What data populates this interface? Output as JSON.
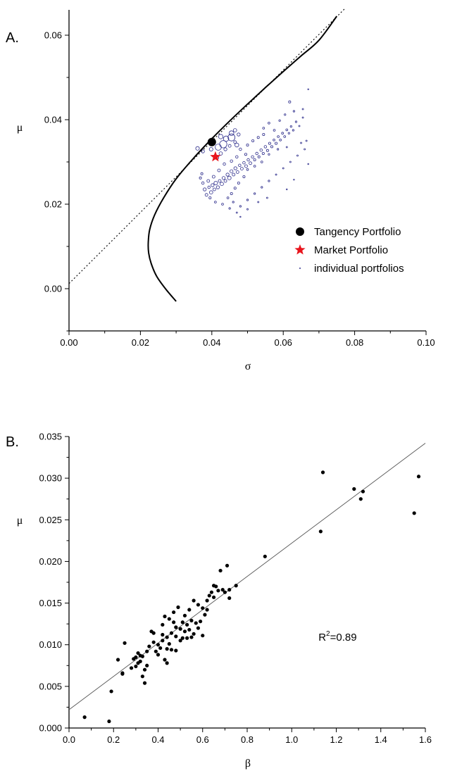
{
  "chart_data": [
    {
      "type": "scatter",
      "panel_label": "A.",
      "xlabel": "σ",
      "ylabel": "μ",
      "xlim": [
        0.0,
        0.1
      ],
      "ylim": [
        -0.01,
        0.066
      ],
      "x_ticks": [
        0.0,
        0.02,
        0.04,
        0.06,
        0.08,
        0.1
      ],
      "x_tick_labels": [
        "0.00",
        "0.02",
        "0.04",
        "0.06",
        "0.08",
        "0.10"
      ],
      "y_ticks": [
        0.0,
        0.02,
        0.04,
        0.06
      ],
      "y_tick_labels": [
        "0.00",
        "0.02",
        "0.04",
        "0.06"
      ],
      "grid": false,
      "legend_position": "bottom-right",
      "legend": [
        {
          "label": "Tangency Portfolio",
          "marker": "filled-circle",
          "color": "#000000"
        },
        {
          "label": "Market Portfolio",
          "marker": "star",
          "color": "#e8141c"
        },
        {
          "label": "individual portfolios",
          "marker": "small-open-circle",
          "color": "#2e2e8c"
        }
      ],
      "frontier_curve": {
        "name": "efficient frontier",
        "min_variance_point": [
          0.0222,
          0.0085
        ],
        "x": [
          0.03,
          0.027,
          0.0245,
          0.023,
          0.0223,
          0.0222,
          0.0226,
          0.024,
          0.0265,
          0.03,
          0.035,
          0.04,
          0.045,
          0.05,
          0.055,
          0.06,
          0.065,
          0.07,
          0.075
        ],
        "y": [
          -0.003,
          0.0,
          0.003,
          0.006,
          0.0085,
          0.011,
          0.014,
          0.0175,
          0.0215,
          0.026,
          0.031,
          0.0355,
          0.0397,
          0.0437,
          0.0476,
          0.0514,
          0.0551,
          0.0588,
          0.0645
        ]
      },
      "capital_market_line": {
        "name": "tangent line",
        "style": "dotted",
        "x": [
          0.0,
          0.0775
        ],
        "y": [
          0.0012,
          0.0665
        ]
      },
      "tangency_portfolio": {
        "x": 0.04,
        "y": 0.0347
      },
      "market_portfolio": {
        "x": 0.041,
        "y": 0.0312
      },
      "individual_portfolios": {
        "color": "#2e2e8c",
        "points": [
          [
            0.038,
            0.0235,
            2.2
          ],
          [
            0.0385,
            0.0222,
            2.0
          ],
          [
            0.0392,
            0.024,
            1.8
          ],
          [
            0.0398,
            0.0228,
            2.4
          ],
          [
            0.0402,
            0.0245,
            2.2
          ],
          [
            0.0407,
            0.0235,
            2.0
          ],
          [
            0.0411,
            0.025,
            2.6
          ],
          [
            0.0417,
            0.024,
            2.2
          ],
          [
            0.0422,
            0.0255,
            2.0
          ],
          [
            0.0428,
            0.0248,
            2.4
          ],
          [
            0.0433,
            0.0262,
            2.2
          ],
          [
            0.0438,
            0.0255,
            2.0
          ],
          [
            0.0444,
            0.027,
            2.2
          ],
          [
            0.0449,
            0.0262,
            2.6
          ],
          [
            0.0455,
            0.0278,
            2.2
          ],
          [
            0.0461,
            0.027,
            2.0
          ],
          [
            0.0466,
            0.0285,
            2.2
          ],
          [
            0.0472,
            0.0276,
            2.0
          ],
          [
            0.0478,
            0.0292,
            1.8
          ],
          [
            0.0484,
            0.0284,
            2.0
          ],
          [
            0.049,
            0.0298,
            1.8
          ],
          [
            0.0496,
            0.029,
            2.0
          ],
          [
            0.0502,
            0.0305,
            1.8
          ],
          [
            0.0508,
            0.0297,
            2.0
          ],
          [
            0.0514,
            0.0312,
            1.8
          ],
          [
            0.052,
            0.0305,
            1.6
          ],
          [
            0.0526,
            0.032,
            1.8
          ],
          [
            0.0532,
            0.0312,
            1.6
          ],
          [
            0.0538,
            0.0328,
            1.8
          ],
          [
            0.0544,
            0.032,
            1.6
          ],
          [
            0.055,
            0.0336,
            1.8
          ],
          [
            0.0556,
            0.0327,
            1.6
          ],
          [
            0.0562,
            0.0344,
            1.6
          ],
          [
            0.0568,
            0.0336,
            1.6
          ],
          [
            0.0574,
            0.0352,
            1.4
          ],
          [
            0.058,
            0.0344,
            1.6
          ],
          [
            0.0586,
            0.036,
            1.4
          ],
          [
            0.0592,
            0.0352,
            1.4
          ],
          [
            0.0598,
            0.0368,
            1.4
          ],
          [
            0.0604,
            0.036,
            1.4
          ],
          [
            0.061,
            0.0376,
            1.4
          ],
          [
            0.0616,
            0.0368,
            1.2
          ],
          [
            0.0622,
            0.0384,
            1.2
          ],
          [
            0.0628,
            0.0375,
            1.2
          ],
          [
            0.0636,
            0.0395,
            1.2
          ],
          [
            0.0645,
            0.0385,
            1.0
          ],
          [
            0.0655,
            0.0405,
            1.0
          ],
          [
            0.0665,
            0.035,
            1.0
          ],
          [
            0.067,
            0.0472,
            0.8
          ],
          [
            0.065,
            0.0345,
            1.0
          ],
          [
            0.061,
            0.0335,
            1.0
          ],
          [
            0.0585,
            0.033,
            1.2
          ],
          [
            0.056,
            0.0318,
            1.2
          ],
          [
            0.054,
            0.03,
            1.4
          ],
          [
            0.052,
            0.029,
            1.4
          ],
          [
            0.05,
            0.0282,
            1.4
          ],
          [
            0.049,
            0.0265,
            1.6
          ],
          [
            0.0475,
            0.025,
            1.6
          ],
          [
            0.0465,
            0.0238,
            1.6
          ],
          [
            0.0455,
            0.0225,
            1.6
          ],
          [
            0.0445,
            0.0215,
            1.4
          ],
          [
            0.046,
            0.0205,
            1.2
          ],
          [
            0.048,
            0.0195,
            1.2
          ],
          [
            0.05,
            0.021,
            1.2
          ],
          [
            0.052,
            0.0225,
            1.2
          ],
          [
            0.054,
            0.024,
            1.2
          ],
          [
            0.056,
            0.0255,
            1.2
          ],
          [
            0.058,
            0.027,
            1.0
          ],
          [
            0.06,
            0.0285,
            1.0
          ],
          [
            0.062,
            0.03,
            1.0
          ],
          [
            0.064,
            0.0315,
            1.0
          ],
          [
            0.066,
            0.033,
            1.0
          ],
          [
            0.0545,
            0.038,
            1.4
          ],
          [
            0.056,
            0.0392,
            1.4
          ],
          [
            0.0575,
            0.0375,
            1.4
          ],
          [
            0.059,
            0.0398,
            1.2
          ],
          [
            0.0605,
            0.0412,
            1.2
          ],
          [
            0.0618,
            0.0442,
            1.6
          ],
          [
            0.063,
            0.042,
            1.2
          ],
          [
            0.0655,
            0.0425,
            1.0
          ],
          [
            0.05,
            0.034,
            1.6
          ],
          [
            0.0515,
            0.035,
            1.6
          ],
          [
            0.053,
            0.0358,
            1.6
          ],
          [
            0.0545,
            0.0365,
            1.6
          ],
          [
            0.048,
            0.033,
            1.8
          ],
          [
            0.0495,
            0.0318,
            1.6
          ],
          [
            0.047,
            0.0312,
            1.8
          ],
          [
            0.0455,
            0.0302,
            1.8
          ],
          [
            0.0435,
            0.0295,
            1.8
          ],
          [
            0.042,
            0.028,
            2.0
          ],
          [
            0.0405,
            0.0265,
            2.0
          ],
          [
            0.039,
            0.0255,
            2.0
          ],
          [
            0.0375,
            0.025,
            1.8
          ],
          [
            0.0368,
            0.0262,
            1.6
          ],
          [
            0.0372,
            0.0272,
            1.6
          ],
          [
            0.0395,
            0.0215,
            1.6
          ],
          [
            0.041,
            0.0205,
            1.4
          ],
          [
            0.043,
            0.02,
            1.4
          ],
          [
            0.045,
            0.019,
            1.2
          ],
          [
            0.047,
            0.018,
            1.0
          ],
          [
            0.05,
            0.0188,
            1.0
          ],
          [
            0.053,
            0.0205,
            1.0
          ],
          [
            0.0555,
            0.0215,
            1.0
          ],
          [
            0.061,
            0.0235,
            0.8
          ],
          [
            0.063,
            0.0258,
            0.8
          ],
          [
            0.067,
            0.0295,
            0.8
          ],
          [
            0.048,
            0.017,
            0.8
          ],
          [
            0.0415,
            0.031,
            2.2
          ],
          [
            0.0425,
            0.032,
            2.4
          ],
          [
            0.0438,
            0.033,
            2.2
          ],
          [
            0.045,
            0.0338,
            2.0
          ],
          [
            0.0465,
            0.0347,
            2.0
          ],
          [
            0.0475,
            0.0365,
            2.2
          ],
          [
            0.0465,
            0.0375,
            2.4
          ],
          [
            0.0455,
            0.0368,
            3.4
          ],
          [
            0.044,
            0.0355,
            3.8
          ],
          [
            0.047,
            0.034,
            2.8
          ],
          [
            0.036,
            0.0332,
            2.6
          ],
          [
            0.0375,
            0.0325,
            2.2
          ],
          [
            0.0398,
            0.033,
            2.6
          ],
          [
            0.04,
            0.0347,
            5.2
          ],
          [
            0.0418,
            0.0335,
            4.4
          ],
          [
            0.0432,
            0.0342,
            5.2
          ],
          [
            0.0455,
            0.0358,
            5.0
          ],
          [
            0.0425,
            0.036,
            3.2
          ]
        ]
      }
    },
    {
      "type": "scatter",
      "panel_label": "B.",
      "xlabel": "β",
      "ylabel": "μ",
      "xlim": [
        0.0,
        1.6
      ],
      "ylim": [
        0.0,
        0.035
      ],
      "x_ticks": [
        0.0,
        0.2,
        0.4,
        0.6,
        0.8,
        1.0,
        1.2,
        1.4,
        1.6
      ],
      "x_tick_labels": [
        "0.0",
        "0.2",
        "0.4",
        "0.6",
        "0.8",
        "1.0",
        "1.2",
        "1.4",
        "1.6"
      ],
      "y_ticks": [
        0.0,
        0.005,
        0.01,
        0.015,
        0.02,
        0.025,
        0.03,
        0.035
      ],
      "y_tick_labels": [
        "0.000",
        "0.005",
        "0.010",
        "0.015",
        "0.020",
        "0.025",
        "0.030",
        "0.035"
      ],
      "grid": false,
      "annotation": {
        "base": "R",
        "superscript": "2",
        "rest": "=0.89",
        "x": 1.12,
        "y": 0.0105
      },
      "regression_line": {
        "x": [
          0.0,
          1.6
        ],
        "y": [
          0.0022,
          0.0342
        ]
      },
      "points": [
        [
          0.07,
          0.0013
        ],
        [
          0.18,
          0.0008
        ],
        [
          0.19,
          0.0044
        ],
        [
          0.22,
          0.0082
        ],
        [
          0.24,
          0.0066
        ],
        [
          0.24,
          0.0065
        ],
        [
          0.25,
          0.0102
        ],
        [
          0.28,
          0.0072
        ],
        [
          0.29,
          0.0083
        ],
        [
          0.3,
          0.0074
        ],
        [
          0.3,
          0.0085
        ],
        [
          0.31,
          0.0078
        ],
        [
          0.31,
          0.009
        ],
        [
          0.32,
          0.008
        ],
        [
          0.32,
          0.0087
        ],
        [
          0.33,
          0.0062
        ],
        [
          0.33,
          0.0086
        ],
        [
          0.34,
          0.0054
        ],
        [
          0.34,
          0.007
        ],
        [
          0.35,
          0.0075
        ],
        [
          0.35,
          0.0092
        ],
        [
          0.36,
          0.0098
        ],
        [
          0.37,
          0.0116
        ],
        [
          0.38,
          0.0103
        ],
        [
          0.38,
          0.0114
        ],
        [
          0.39,
          0.0092
        ],
        [
          0.4,
          0.0088
        ],
        [
          0.4,
          0.01
        ],
        [
          0.41,
          0.0096
        ],
        [
          0.42,
          0.0105
        ],
        [
          0.42,
          0.0112
        ],
        [
          0.42,
          0.0124
        ],
        [
          0.43,
          0.0082
        ],
        [
          0.43,
          0.0134
        ],
        [
          0.44,
          0.0095
        ],
        [
          0.44,
          0.0109
        ],
        [
          0.44,
          0.0078
        ],
        [
          0.45,
          0.0101
        ],
        [
          0.45,
          0.0131
        ],
        [
          0.46,
          0.0094
        ],
        [
          0.46,
          0.0114
        ],
        [
          0.47,
          0.0127
        ],
        [
          0.47,
          0.0139
        ],
        [
          0.48,
          0.0093
        ],
        [
          0.48,
          0.011
        ],
        [
          0.48,
          0.0121
        ],
        [
          0.49,
          0.0145
        ],
        [
          0.5,
          0.0105
        ],
        [
          0.5,
          0.0119
        ],
        [
          0.51,
          0.0127
        ],
        [
          0.51,
          0.0108
        ],
        [
          0.52,
          0.0116
        ],
        [
          0.52,
          0.0135
        ],
        [
          0.53,
          0.0108
        ],
        [
          0.53,
          0.0124
        ],
        [
          0.54,
          0.0142
        ],
        [
          0.54,
          0.0118
        ],
        [
          0.55,
          0.0109
        ],
        [
          0.55,
          0.0129
        ],
        [
          0.56,
          0.0153
        ],
        [
          0.56,
          0.0113
        ],
        [
          0.57,
          0.0126
        ],
        [
          0.58,
          0.012
        ],
        [
          0.58,
          0.0148
        ],
        [
          0.59,
          0.0128
        ],
        [
          0.6,
          0.0144
        ],
        [
          0.6,
          0.0111
        ],
        [
          0.61,
          0.0136
        ],
        [
          0.62,
          0.0153
        ],
        [
          0.62,
          0.0142
        ],
        [
          0.63,
          0.0159
        ],
        [
          0.64,
          0.0163
        ],
        [
          0.65,
          0.0171
        ],
        [
          0.65,
          0.0157
        ],
        [
          0.66,
          0.017
        ],
        [
          0.67,
          0.0165
        ],
        [
          0.68,
          0.0189
        ],
        [
          0.69,
          0.0166
        ],
        [
          0.7,
          0.0163
        ],
        [
          0.71,
          0.0195
        ],
        [
          0.72,
          0.0166
        ],
        [
          0.72,
          0.0156
        ],
        [
          0.75,
          0.0171
        ],
        [
          0.88,
          0.0206
        ],
        [
          1.13,
          0.0236
        ],
        [
          1.14,
          0.0307
        ],
        [
          1.28,
          0.0287
        ],
        [
          1.31,
          0.0275
        ],
        [
          1.32,
          0.0284
        ],
        [
          1.55,
          0.0258
        ],
        [
          1.57,
          0.0302
        ]
      ]
    }
  ]
}
